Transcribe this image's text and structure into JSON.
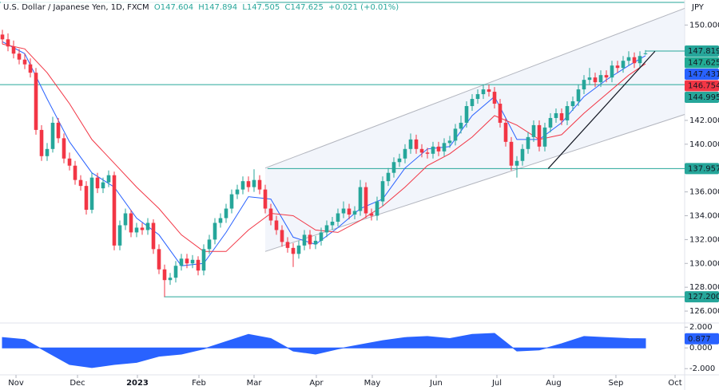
{
  "chart_data": [
    {
      "type": "candlestick",
      "title": "U.S. Dollar / Japanese Yen, 1D, FXCM",
      "ohlc_header": [
        "O147.604",
        "H147.894",
        "L147.505",
        "C147.625",
        "+0.021 (+0.01%)"
      ],
      "currency": "JPY",
      "up_color": "#26a69a",
      "down_color": "#f23645",
      "ohlc": [
        [
          149.2,
          149.6,
          148.4,
          148.8
        ],
        [
          148.8,
          149.3,
          147.8,
          148.2
        ],
        [
          148.2,
          148.7,
          147.2,
          147.6
        ],
        [
          147.6,
          148.0,
          146.7,
          147.1
        ],
        [
          147.1,
          147.6,
          146.3,
          146.7
        ],
        [
          146.7,
          147.2,
          145.6,
          146.0
        ],
        [
          146.0,
          146.4,
          140.8,
          141.2
        ],
        [
          141.2,
          141.6,
          138.6,
          139.0
        ],
        [
          139.0,
          140.1,
          138.6,
          139.6
        ],
        [
          139.6,
          142.3,
          139.3,
          141.8
        ],
        [
          141.8,
          142.2,
          140.1,
          140.5
        ],
        [
          140.5,
          140.9,
          138.4,
          138.8
        ],
        [
          138.8,
          139.3,
          137.8,
          138.2
        ],
        [
          138.2,
          138.6,
          136.6,
          137.0
        ],
        [
          137.0,
          137.4,
          136.1,
          136.5
        ],
        [
          136.5,
          136.9,
          134.1,
          134.5
        ],
        [
          134.5,
          137.6,
          134.2,
          137.2
        ],
        [
          137.2,
          137.6,
          135.9,
          136.3
        ],
        [
          136.3,
          137.2,
          135.9,
          136.8
        ],
        [
          136.8,
          137.8,
          136.4,
          137.4
        ],
        [
          137.4,
          137.7,
          131.1,
          131.5
        ],
        [
          131.5,
          133.6,
          131.1,
          133.2
        ],
        [
          133.2,
          134.6,
          132.8,
          134.2
        ],
        [
          134.2,
          134.5,
          132.2,
          132.6
        ],
        [
          132.6,
          133.4,
          132.2,
          133.0
        ],
        [
          133.0,
          133.4,
          132.4,
          132.8
        ],
        [
          132.8,
          133.8,
          132.4,
          133.4
        ],
        [
          133.4,
          133.7,
          130.8,
          131.2
        ],
        [
          131.2,
          131.6,
          129.1,
          129.5
        ],
        [
          129.5,
          129.9,
          127.2,
          128.6
        ],
        [
          128.6,
          129.2,
          128.2,
          128.8
        ],
        [
          128.8,
          130.2,
          128.4,
          129.8
        ],
        [
          129.8,
          130.8,
          129.4,
          130.4
        ],
        [
          130.4,
          130.8,
          129.6,
          130.0
        ],
        [
          130.0,
          130.7,
          129.6,
          130.3
        ],
        [
          130.3,
          130.6,
          129.0,
          129.4
        ],
        [
          129.4,
          131.6,
          129.0,
          131.2
        ],
        [
          131.2,
          132.4,
          130.8,
          132.0
        ],
        [
          132.0,
          133.8,
          131.6,
          133.4
        ],
        [
          133.4,
          134.2,
          133.0,
          133.8
        ],
        [
          133.8,
          135.0,
          133.4,
          134.6
        ],
        [
          134.6,
          136.2,
          134.2,
          135.8
        ],
        [
          135.8,
          136.6,
          135.4,
          136.2
        ],
        [
          136.2,
          137.3,
          135.8,
          136.9
        ],
        [
          136.9,
          137.3,
          136.0,
          136.4
        ],
        [
          136.4,
          137.9,
          136.0,
          137.0
        ],
        [
          137.0,
          137.4,
          135.8,
          136.2
        ],
        [
          136.2,
          136.6,
          134.2,
          134.6
        ],
        [
          134.6,
          135.0,
          133.2,
          133.6
        ],
        [
          133.6,
          134.0,
          132.4,
          132.8
        ],
        [
          132.8,
          133.2,
          131.4,
          131.8
        ],
        [
          131.8,
          132.2,
          130.9,
          131.3
        ],
        [
          131.3,
          131.7,
          129.7,
          130.8
        ],
        [
          130.8,
          131.9,
          130.4,
          131.5
        ],
        [
          131.5,
          132.8,
          131.1,
          132.4
        ],
        [
          132.4,
          132.8,
          131.2,
          131.6
        ],
        [
          131.6,
          132.3,
          131.2,
          131.9
        ],
        [
          131.9,
          133.0,
          131.5,
          132.6
        ],
        [
          132.6,
          133.6,
          132.2,
          133.2
        ],
        [
          133.2,
          133.9,
          132.8,
          133.5
        ],
        [
          133.5,
          134.6,
          133.1,
          134.2
        ],
        [
          134.2,
          135.2,
          133.8,
          134.6
        ],
        [
          134.6,
          135.0,
          133.7,
          134.1
        ],
        [
          134.1,
          134.8,
          133.7,
          134.4
        ],
        [
          134.4,
          137.0,
          134.0,
          136.4
        ],
        [
          136.4,
          136.8,
          133.8,
          134.2
        ],
        [
          134.2,
          134.6,
          133.6,
          134.0
        ],
        [
          134.0,
          135.6,
          133.6,
          135.2
        ],
        [
          135.2,
          137.3,
          134.8,
          136.9
        ],
        [
          136.9,
          138.0,
          136.5,
          137.6
        ],
        [
          137.6,
          138.9,
          137.2,
          138.5
        ],
        [
          138.5,
          139.2,
          138.1,
          138.8
        ],
        [
          138.8,
          140.0,
          138.4,
          139.6
        ],
        [
          139.6,
          140.9,
          139.2,
          140.4
        ],
        [
          140.4,
          140.8,
          139.2,
          139.6
        ],
        [
          139.6,
          140.0,
          138.9,
          139.3
        ],
        [
          139.3,
          139.7,
          138.8,
          139.2
        ],
        [
          139.2,
          140.2,
          138.8,
          139.8
        ],
        [
          139.8,
          140.2,
          139.0,
          139.4
        ],
        [
          139.4,
          140.5,
          139.0,
          140.1
        ],
        [
          140.1,
          140.7,
          139.7,
          140.3
        ],
        [
          140.3,
          141.7,
          139.9,
          141.3
        ],
        [
          141.3,
          142.4,
          140.9,
          141.8
        ],
        [
          141.8,
          143.6,
          141.4,
          143.2
        ],
        [
          143.2,
          144.2,
          142.8,
          143.8
        ],
        [
          143.8,
          144.6,
          143.4,
          144.2
        ],
        [
          144.2,
          145.0,
          143.8,
          144.6
        ],
        [
          144.6,
          145.0,
          144.0,
          144.4
        ],
        [
          144.4,
          144.8,
          143.0,
          143.4
        ],
        [
          143.4,
          143.8,
          141.4,
          141.8
        ],
        [
          141.8,
          142.2,
          139.8,
          140.2
        ],
        [
          140.2,
          140.6,
          137.8,
          138.2
        ],
        [
          138.2,
          139.0,
          137.2,
          138.6
        ],
        [
          138.6,
          140.0,
          138.2,
          139.6
        ],
        [
          139.6,
          141.0,
          139.2,
          140.6
        ],
        [
          140.6,
          142.0,
          140.2,
          141.6
        ],
        [
          141.6,
          142.0,
          139.4,
          139.8
        ],
        [
          139.8,
          141.8,
          139.4,
          141.4
        ],
        [
          141.4,
          142.6,
          141.0,
          142.2
        ],
        [
          142.2,
          143.0,
          141.8,
          142.6
        ],
        [
          142.6,
          143.0,
          141.6,
          142.0
        ],
        [
          142.0,
          143.6,
          141.6,
          143.2
        ],
        [
          143.2,
          144.0,
          142.8,
          143.6
        ],
        [
          143.6,
          145.0,
          143.2,
          144.6
        ],
        [
          144.6,
          145.8,
          144.2,
          145.4
        ],
        [
          145.4,
          146.4,
          145.0,
          145.6
        ],
        [
          145.6,
          146.0,
          144.8,
          145.2
        ],
        [
          145.2,
          146.2,
          144.8,
          145.8
        ],
        [
          145.8,
          146.2,
          145.2,
          145.6
        ],
        [
          145.6,
          147.0,
          145.2,
          146.6
        ],
        [
          146.6,
          147.0,
          146.0,
          146.4
        ],
        [
          146.4,
          147.4,
          146.0,
          147.0
        ],
        [
          147.0,
          147.8,
          146.6,
          147.3
        ],
        [
          147.3,
          147.7,
          146.4,
          146.8
        ],
        [
          146.8,
          147.8,
          146.4,
          147.4
        ],
        [
          147.604,
          147.894,
          147.505,
          147.625
        ]
      ],
      "lines": [
        {
          "color": "#2962ff",
          "x": [
            0,
            4,
            8,
            12,
            16,
            20,
            24,
            28,
            32,
            36,
            40,
            44,
            48,
            52,
            56,
            60,
            64,
            68,
            72,
            76,
            80,
            84,
            88,
            92,
            96,
            100,
            104,
            108,
            112,
            115
          ],
          "values": [
            148.6,
            147.6,
            143.8,
            140.2,
            137.6,
            136.4,
            133.8,
            132.4,
            129.8,
            130.0,
            132.6,
            135.6,
            135.4,
            132.2,
            131.6,
            133.0,
            134.6,
            135.4,
            138.0,
            139.6,
            139.8,
            142.4,
            144.0,
            140.4,
            140.4,
            141.8,
            144.0,
            145.4,
            146.6,
            147.431
          ]
        },
        {
          "color": "#f23645",
          "x": [
            0,
            4,
            8,
            12,
            16,
            20,
            24,
            28,
            32,
            36,
            40,
            44,
            48,
            52,
            56,
            60,
            64,
            68,
            72,
            76,
            80,
            84,
            88,
            92,
            96,
            100,
            104,
            108,
            112,
            115
          ],
          "values": [
            148.4,
            148.0,
            146.0,
            143.4,
            140.4,
            138.4,
            136.4,
            134.6,
            132.4,
            131.0,
            131.0,
            132.8,
            134.2,
            134.0,
            132.8,
            132.6,
            133.6,
            134.8,
            136.4,
            138.2,
            139.2,
            140.6,
            142.4,
            141.6,
            140.4,
            140.8,
            142.6,
            144.2,
            145.8,
            146.754
          ]
        }
      ],
      "hlines": [
        {
          "value": 144.995,
          "from": -0.43
        },
        {
          "value": 137.957,
          "from": 47.4
        },
        {
          "value": 127.2,
          "from": 28.9
        },
        {
          "value": 147.819,
          "from": 115
        }
      ],
      "hline_color": "#26a69a",
      "channel": {
        "lower": {
          "x": [
            47,
            122
          ],
          "values": [
            131.0,
            142.5
          ]
        },
        "upper": {
          "x": [
            47,
            122
          ],
          "values": [
            138.0,
            151.4
          ]
        },
        "color": "#b2b5be"
      },
      "trendline": {
        "x": [
          97.6,
          116.7
        ],
        "values": [
          137.96,
          147.8
        ],
        "color": "#131722"
      },
      "price_labels": [
        {
          "value": 147.819,
          "color": "#26a69a"
        },
        {
          "value": 147.625,
          "color": "#22ab94"
        },
        {
          "value": 147.431,
          "color": "#2962ff"
        },
        {
          "value": 146.754,
          "color": "#f23645"
        },
        {
          "value": 144.995,
          "color": "#26a69a"
        },
        {
          "value": 137.957,
          "color": "#26a69a"
        },
        {
          "value": 127.2,
          "label": "127.200",
          "color": "#26a69a"
        }
      ],
      "xlim": [
        -0.43,
        122
      ],
      "xticks": [
        {
          "value": 2.43,
          "label": "Nov"
        },
        {
          "value": 13.43,
          "label": "Dec"
        },
        {
          "value": 24.14,
          "label": "2023"
        },
        {
          "value": 35.14,
          "label": "Feb"
        },
        {
          "value": 45,
          "label": "Mar"
        },
        {
          "value": 56.14,
          "label": "Apr"
        },
        {
          "value": 66.14,
          "label": "May"
        },
        {
          "value": 77.57,
          "label": "Jun"
        },
        {
          "value": 88.43,
          "label": "Jul"
        },
        {
          "value": 98.57,
          "label": "Aug"
        },
        {
          "value": 109.71,
          "label": "Sep"
        },
        {
          "value": 120.29,
          "label": "Oct"
        }
      ],
      "ylim": [
        125,
        152.1
      ],
      "yticks": [
        {
          "value": 126,
          "label": "126.000"
        },
        {
          "value": 128,
          "label": "128.000"
        },
        {
          "value": 130,
          "label": "130.000"
        },
        {
          "value": 132,
          "label": "132.000"
        },
        {
          "value": 134,
          "label": "134.000"
        },
        {
          "value": 136,
          "label": "136.000"
        },
        {
          "value": 138,
          "label": "138.000"
        },
        {
          "value": 140,
          "label": "140.000"
        },
        {
          "value": 142,
          "label": "142.000"
        },
        {
          "value": 144,
          "label": "144.000"
        },
        {
          "value": 146,
          "label": "146.000"
        },
        {
          "value": 148,
          "label": "148.000"
        },
        {
          "value": 150,
          "label": "150.000"
        }
      ]
    },
    {
      "type": "area",
      "color": "#2962ff",
      "x": [
        0,
        4,
        8,
        12,
        16,
        20,
        24,
        28,
        32,
        36,
        40,
        44,
        48,
        52,
        56,
        60,
        64,
        68,
        72,
        76,
        80,
        84,
        88,
        92,
        96,
        100,
        104,
        108,
        112,
        115
      ],
      "values": [
        1.0,
        0.8,
        -0.4,
        -1.6,
        -1.9,
        -1.6,
        -1.4,
        -0.8,
        -0.6,
        -0.1,
        0.6,
        1.3,
        0.9,
        -0.3,
        -0.6,
        -0.1,
        0.3,
        0.7,
        1.0,
        1.1,
        0.9,
        1.3,
        1.4,
        -0.3,
        -0.2,
        0.4,
        1.1,
        1.0,
        0.9,
        0.877
      ],
      "last_label": {
        "value": 0.877,
        "color": "#2962ff"
      },
      "xlim": [
        -0.43,
        122
      ],
      "ylim": [
        -2.6,
        2.4
      ],
      "yticks": [
        {
          "value": 2,
          "label": "2.000"
        },
        {
          "value": 0,
          "label": "0.000"
        },
        {
          "value": -2,
          "label": "-2.000"
        }
      ]
    }
  ]
}
